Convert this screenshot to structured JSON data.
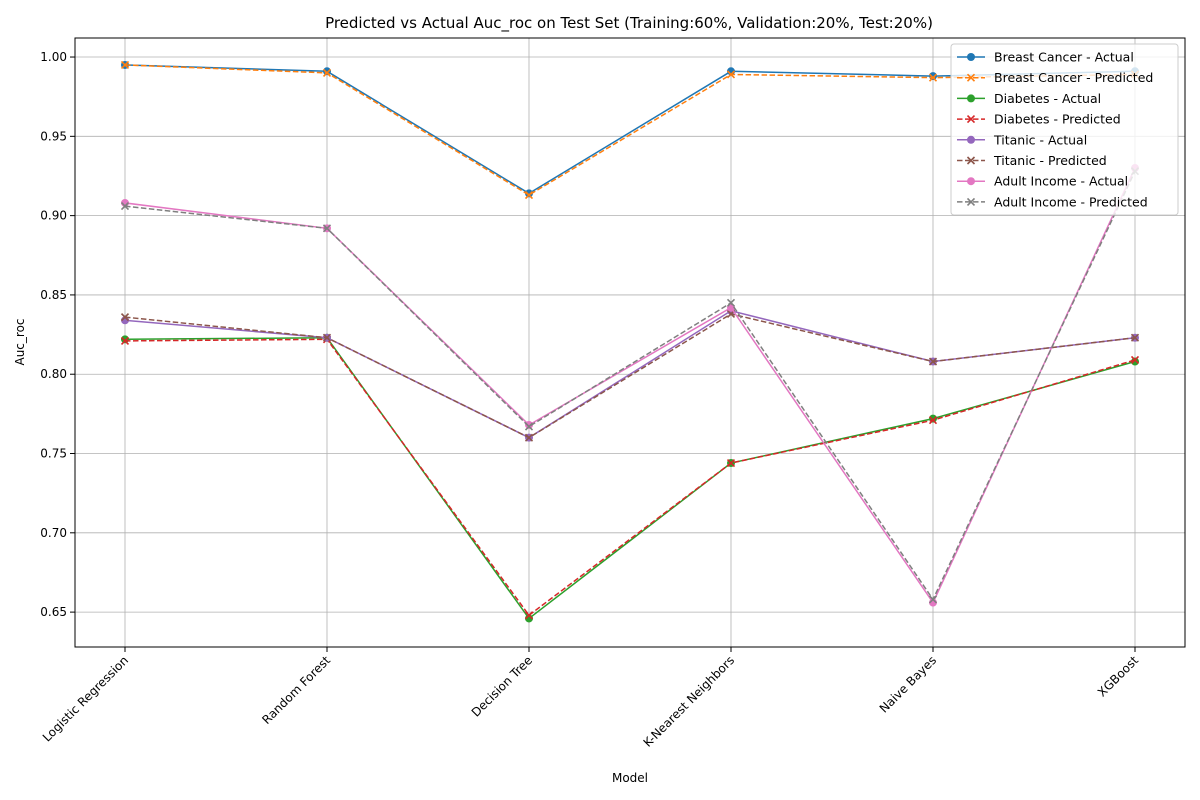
{
  "chart_data": {
    "type": "line",
    "title": "Predicted vs Actual Auc_roc on Test Set (Training:60%, Validation:20%, Test:20%)",
    "xlabel": "Model",
    "ylabel": "Auc_roc",
    "categories": [
      "Logistic Regression",
      "Random Forest",
      "Decision Tree",
      "K-Nearest Neighbors",
      "Naive Bayes",
      "XGBoost"
    ],
    "ylim": [
      0.628,
      1.012
    ],
    "yticks": [
      "0.65",
      "0.70",
      "0.75",
      "0.80",
      "0.85",
      "0.90",
      "0.95",
      "1.00"
    ],
    "grid": true,
    "legend_position": "top-right",
    "series": [
      {
        "name": "Breast Cancer - Actual",
        "color": "#1f77b4",
        "style": "solid",
        "marker": "circle",
        "values": [
          0.995,
          0.991,
          0.914,
          0.991,
          0.988,
          0.991
        ]
      },
      {
        "name": "Breast Cancer - Predicted",
        "color": "#ff7f0e",
        "style": "dashed",
        "marker": "x",
        "values": [
          0.995,
          0.99,
          0.913,
          0.989,
          0.987,
          0.989
        ]
      },
      {
        "name": "Diabetes - Actual",
        "color": "#2ca02c",
        "style": "solid",
        "marker": "circle",
        "values": [
          0.822,
          0.823,
          0.646,
          0.744,
          0.772,
          0.808
        ]
      },
      {
        "name": "Diabetes - Predicted",
        "color": "#d62728",
        "style": "dashed",
        "marker": "x",
        "values": [
          0.821,
          0.822,
          0.648,
          0.744,
          0.771,
          0.809
        ]
      },
      {
        "name": "Titanic - Actual",
        "color": "#9467bd",
        "style": "solid",
        "marker": "circle",
        "values": [
          0.834,
          0.823,
          0.76,
          0.84,
          0.808,
          0.823
        ]
      },
      {
        "name": "Titanic - Predicted",
        "color": "#8c564b",
        "style": "dashed",
        "marker": "x",
        "values": [
          0.836,
          0.823,
          0.76,
          0.838,
          0.808,
          0.823
        ]
      },
      {
        "name": "Adult Income - Actual",
        "color": "#e377c2",
        "style": "solid",
        "marker": "circle",
        "values": [
          0.908,
          0.892,
          0.768,
          0.842,
          0.656,
          0.93
        ]
      },
      {
        "name": "Adult Income - Predicted",
        "color": "#7f7f7f",
        "style": "dashed",
        "marker": "x",
        "values": [
          0.906,
          0.892,
          0.767,
          0.845,
          0.658,
          0.928
        ]
      }
    ]
  }
}
